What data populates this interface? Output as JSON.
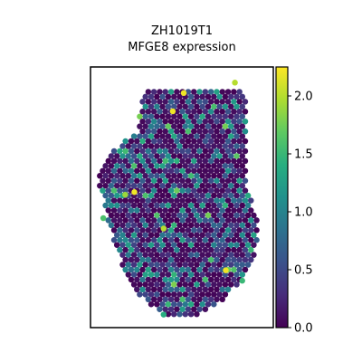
{
  "chart_data": {
    "type": "scatter",
    "title_lines": [
      "ZH1019T1",
      "MFGE8 expression"
    ],
    "xlabel": "",
    "ylabel": "",
    "x_ticks_shown": false,
    "y_ticks_shown": false,
    "colormap": "viridis",
    "color_range": [
      0.0,
      2.25
    ],
    "colorbar_ticks": [
      0.0,
      0.5,
      1.0,
      1.5,
      2.0
    ],
    "colorbar_tick_labels": [
      "0.0",
      "0.5",
      "1.0",
      "1.5",
      "2.0"
    ],
    "spot_shape": "hexagonal grid",
    "point_value_cap": 2.2,
    "outline_rows": [
      {
        "y": 0.08,
        "x_min": 0.3,
        "x_max": 0.83
      },
      {
        "y": 0.15,
        "x_min": 0.27,
        "x_max": 0.86
      },
      {
        "y": 0.25,
        "x_min": 0.26,
        "x_max": 0.86
      },
      {
        "y": 0.33,
        "x_min": 0.1,
        "x_max": 0.85
      },
      {
        "y": 0.42,
        "x_min": 0.04,
        "x_max": 0.85
      },
      {
        "y": 0.52,
        "x_min": 0.07,
        "x_max": 0.88
      },
      {
        "y": 0.62,
        "x_min": 0.11,
        "x_max": 0.93
      },
      {
        "y": 0.72,
        "x_min": 0.15,
        "x_max": 0.9
      },
      {
        "y": 0.82,
        "x_min": 0.21,
        "x_max": 0.83
      },
      {
        "y": 0.9,
        "x_min": 0.3,
        "x_max": 0.72
      },
      {
        "y": 0.95,
        "x_min": 0.42,
        "x_max": 0.6
      }
    ],
    "highlight_points": [
      {
        "x": 0.79,
        "y": 0.06,
        "value": 2.0
      },
      {
        "x": 0.51,
        "y": 0.1,
        "value": 2.2
      },
      {
        "x": 0.45,
        "y": 0.17,
        "value": 2.2
      },
      {
        "x": 0.24,
        "y": 0.48,
        "value": 2.2
      },
      {
        "x": 0.19,
        "y": 0.49,
        "value": 1.9
      },
      {
        "x": 0.4,
        "y": 0.62,
        "value": 2.0
      },
      {
        "x": 0.74,
        "y": 0.78,
        "value": 2.2
      },
      {
        "x": 0.07,
        "y": 0.58,
        "value": 1.6
      },
      {
        "x": 0.83,
        "y": 0.82,
        "value": 1.5
      },
      {
        "x": 0.4,
        "y": 0.95,
        "value": 1.4
      }
    ]
  }
}
